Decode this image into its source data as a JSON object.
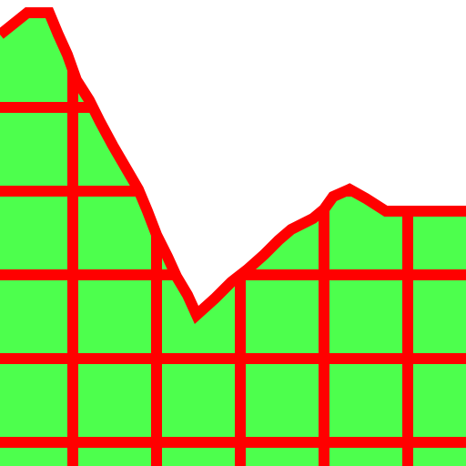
{
  "scene": {
    "description_free": true,
    "sky_color": "#ffffff",
    "terrain_fill_color": "#4dff4d",
    "terrain_edge_color": "#ff0000",
    "grid_color": "#ff0000"
  }
}
